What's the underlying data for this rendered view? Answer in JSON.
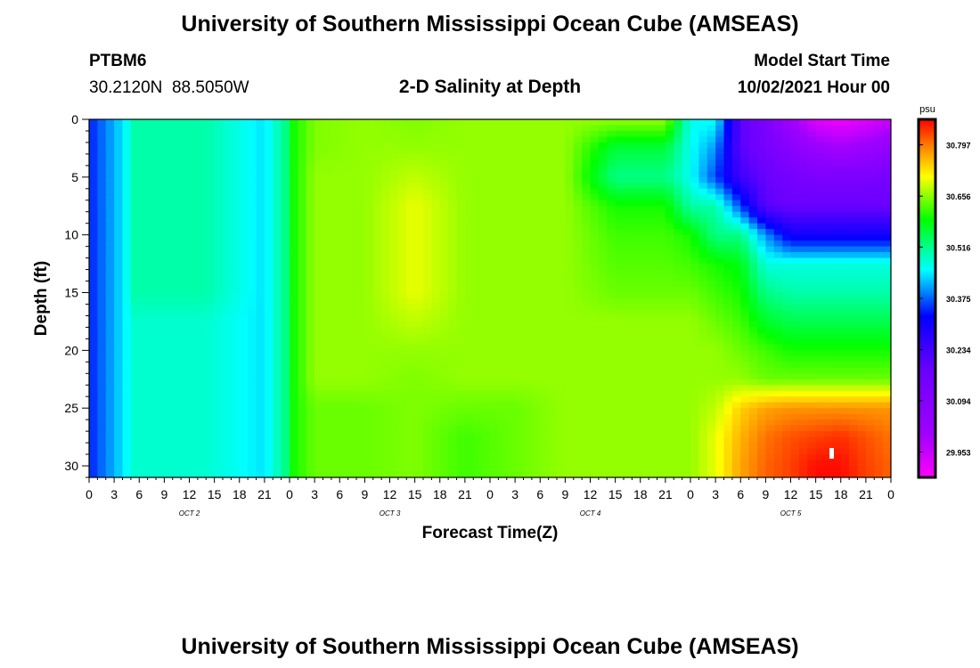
{
  "header": {
    "title": "University of Southern Mississippi Ocean Cube (AMSEAS)",
    "footer_title": "University of Southern Mississippi Ocean Cube (AMSEAS)",
    "station_id": "PTBM6",
    "station_coords": "30.2120N  88.5050W",
    "plot_title": "2-D Salinity at Depth",
    "model_start_label": "Model Start Time",
    "model_start_value": "10/02/2021 Hour 00"
  },
  "chart_data": {
    "type": "heatmap",
    "title": "2-D Salinity at Depth",
    "xlabel": "Forecast Time(Z)",
    "ylabel": "Depth (ft)",
    "x_range_hours": [
      0,
      96
    ],
    "y_range_ft": [
      0,
      31
    ],
    "y_ticks": [
      "0",
      "5",
      "10",
      "15",
      "20",
      "25",
      "30"
    ],
    "x_tick_labels": [
      "0",
      "3",
      "6",
      "9",
      "12",
      "15",
      "18",
      "21",
      "0",
      "3",
      "6",
      "9",
      "12",
      "15",
      "18",
      "21",
      "0",
      "3",
      "6",
      "9",
      "12",
      "15",
      "18",
      "21",
      "0",
      "3",
      "6",
      "9",
      "12",
      "15",
      "18",
      "21",
      "0"
    ],
    "day_labels": [
      "OCT 2",
      "OCT 3",
      "OCT 4",
      "OCT 5"
    ],
    "colorbar": {
      "unit": "psu",
      "range": [
        29.883,
        30.867
      ],
      "tick_labels": [
        "30.797",
        "30.656",
        "30.516",
        "30.375",
        "30.234",
        "30.094",
        "29.953"
      ],
      "tick_values": [
        30.797,
        30.656,
        30.516,
        30.375,
        30.234,
        30.094,
        29.953
      ]
    },
    "depths_ft": [
      0,
      2.5,
      5,
      7.5,
      10,
      12.5,
      15,
      17.5,
      20,
      22.5,
      25,
      27.5,
      30,
      31
    ],
    "times_h": [
      0,
      4,
      5.5,
      7,
      14,
      21,
      23.5,
      24.5,
      27,
      33,
      39,
      45,
      51,
      57,
      63,
      69,
      72,
      75,
      78,
      81,
      84,
      87,
      90,
      93,
      96
    ],
    "salinity_psu": [
      [
        30.34,
        30.44,
        30.5,
        30.5,
        30.5,
        30.44,
        30.52,
        30.6,
        30.65,
        30.66,
        30.65,
        30.66,
        30.66,
        30.66,
        30.66,
        30.66,
        30.46,
        30.46,
        30.2,
        30.12,
        30.0,
        29.92,
        29.9,
        29.92,
        29.95
      ],
      [
        30.34,
        30.44,
        30.5,
        30.5,
        30.5,
        30.44,
        30.52,
        30.6,
        30.65,
        30.66,
        30.66,
        30.66,
        30.66,
        30.66,
        30.56,
        30.56,
        30.46,
        30.4,
        30.2,
        30.14,
        30.08,
        30.02,
        30.0,
        30.02,
        30.05
      ],
      [
        30.34,
        30.44,
        30.5,
        30.5,
        30.5,
        30.44,
        30.52,
        30.6,
        30.66,
        30.66,
        30.68,
        30.66,
        30.66,
        30.66,
        30.52,
        30.52,
        30.46,
        30.36,
        30.24,
        30.18,
        30.14,
        30.12,
        30.12,
        30.12,
        30.14
      ],
      [
        30.34,
        30.44,
        30.5,
        30.5,
        30.5,
        30.44,
        30.52,
        30.6,
        30.66,
        30.66,
        30.7,
        30.66,
        30.66,
        30.66,
        30.6,
        30.6,
        30.5,
        30.5,
        30.36,
        30.2,
        30.18,
        30.18,
        30.18,
        30.18,
        30.18
      ],
      [
        30.34,
        30.44,
        30.5,
        30.5,
        30.5,
        30.44,
        30.52,
        30.6,
        30.66,
        30.66,
        30.7,
        30.66,
        30.66,
        30.66,
        30.62,
        30.62,
        30.6,
        30.52,
        30.52,
        30.4,
        30.3,
        30.3,
        30.3,
        30.3,
        30.3
      ],
      [
        30.34,
        30.44,
        30.5,
        30.5,
        30.5,
        30.44,
        30.52,
        30.6,
        30.66,
        30.66,
        30.7,
        30.66,
        30.66,
        30.66,
        30.63,
        30.63,
        30.62,
        30.6,
        30.58,
        30.47,
        30.47,
        30.47,
        30.47,
        30.47,
        30.47
      ],
      [
        30.34,
        30.44,
        30.5,
        30.5,
        30.5,
        30.44,
        30.52,
        30.6,
        30.66,
        30.66,
        30.7,
        30.66,
        30.66,
        30.66,
        30.64,
        30.64,
        30.64,
        30.62,
        30.6,
        30.52,
        30.5,
        30.5,
        30.5,
        30.5,
        30.5
      ],
      [
        30.34,
        30.44,
        30.48,
        30.48,
        30.48,
        30.44,
        30.52,
        30.6,
        30.66,
        30.66,
        30.68,
        30.66,
        30.66,
        30.66,
        30.66,
        30.66,
        30.66,
        30.64,
        30.62,
        30.57,
        30.55,
        30.55,
        30.55,
        30.55,
        30.55
      ],
      [
        30.34,
        30.44,
        30.48,
        30.48,
        30.48,
        30.44,
        30.52,
        30.6,
        30.66,
        30.66,
        30.66,
        30.66,
        30.66,
        30.66,
        30.66,
        30.66,
        30.66,
        30.66,
        30.64,
        30.62,
        30.6,
        30.6,
        30.6,
        30.6,
        30.6
      ],
      [
        30.34,
        30.44,
        30.48,
        30.48,
        30.48,
        30.44,
        30.52,
        30.6,
        30.66,
        30.66,
        30.65,
        30.66,
        30.66,
        30.66,
        30.66,
        30.66,
        30.66,
        30.66,
        30.66,
        30.64,
        30.64,
        30.64,
        30.64,
        30.64,
        30.64
      ],
      [
        30.34,
        30.44,
        30.48,
        30.48,
        30.48,
        30.44,
        30.52,
        30.6,
        30.64,
        30.64,
        30.65,
        30.64,
        30.64,
        30.66,
        30.66,
        30.66,
        30.66,
        30.68,
        30.74,
        30.77,
        30.78,
        30.78,
        30.78,
        30.78,
        30.78
      ],
      [
        30.34,
        30.44,
        30.48,
        30.48,
        30.48,
        30.44,
        30.52,
        30.6,
        30.64,
        30.64,
        30.65,
        30.62,
        30.64,
        30.66,
        30.66,
        30.66,
        30.66,
        30.7,
        30.76,
        30.8,
        30.82,
        30.83,
        30.84,
        30.82,
        30.8
      ],
      [
        30.34,
        30.44,
        30.48,
        30.48,
        30.48,
        30.44,
        30.52,
        30.6,
        30.64,
        30.64,
        30.65,
        30.62,
        30.64,
        30.66,
        30.66,
        30.66,
        30.66,
        30.7,
        30.77,
        30.81,
        30.83,
        30.86,
        30.86,
        30.83,
        30.81
      ],
      [
        30.34,
        30.44,
        30.48,
        30.48,
        30.48,
        30.44,
        30.52,
        30.6,
        30.64,
        30.64,
        30.65,
        30.62,
        30.64,
        30.66,
        30.66,
        30.66,
        30.66,
        30.7,
        30.77,
        30.81,
        30.83,
        30.86,
        30.86,
        30.83,
        30.81
      ]
    ]
  }
}
